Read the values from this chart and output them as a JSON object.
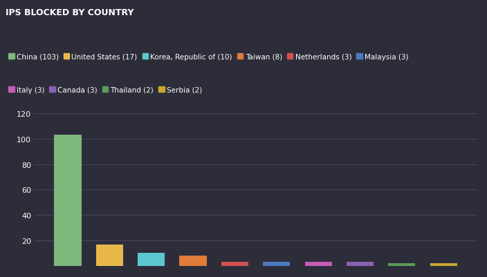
{
  "title": "IPS BLOCKED BY COUNTRY",
  "fig_bg": "#2d2d3a",
  "plot_bg": "#2d2d3a",
  "categories": [
    "China",
    "United States",
    "Korea, Republic of",
    "Taiwan",
    "Netherlands",
    "Malaysia",
    "Italy",
    "Canada",
    "Thailand",
    "Serbia"
  ],
  "values": [
    103,
    17,
    10,
    8,
    3,
    3,
    3,
    3,
    2,
    2
  ],
  "bar_colors": [
    "#7db87d",
    "#e8b84b",
    "#5bc8d0",
    "#e07b3a",
    "#d05050",
    "#4a7bbf",
    "#c45cb8",
    "#8a60b0",
    "#5a9e5a",
    "#c9a830"
  ],
  "legend_labels": [
    "China (103)",
    "United States (17)",
    "Korea, Republic of (10)",
    "Taiwan (8)",
    "Netherlands (3)",
    "Malaysia (3)",
    "Italy (3)",
    "Canada (3)",
    "Thailand (2)",
    "Serbia (2)"
  ],
  "legend_colors": [
    "#7db87d",
    "#e8b84b",
    "#5bc8d0",
    "#e07b3a",
    "#d05050",
    "#4a7bbf",
    "#c45cb8",
    "#8a60b0",
    "#5a9e5a",
    "#c9a830"
  ],
  "ylim": [
    0,
    120
  ],
  "yticks": [
    20,
    40,
    60,
    80,
    100,
    120
  ],
  "grid_color": "#4a4a5a",
  "text_color": "#ffffff",
  "title_fontsize": 9,
  "legend_fontsize": 7.5,
  "tick_fontsize": 8
}
